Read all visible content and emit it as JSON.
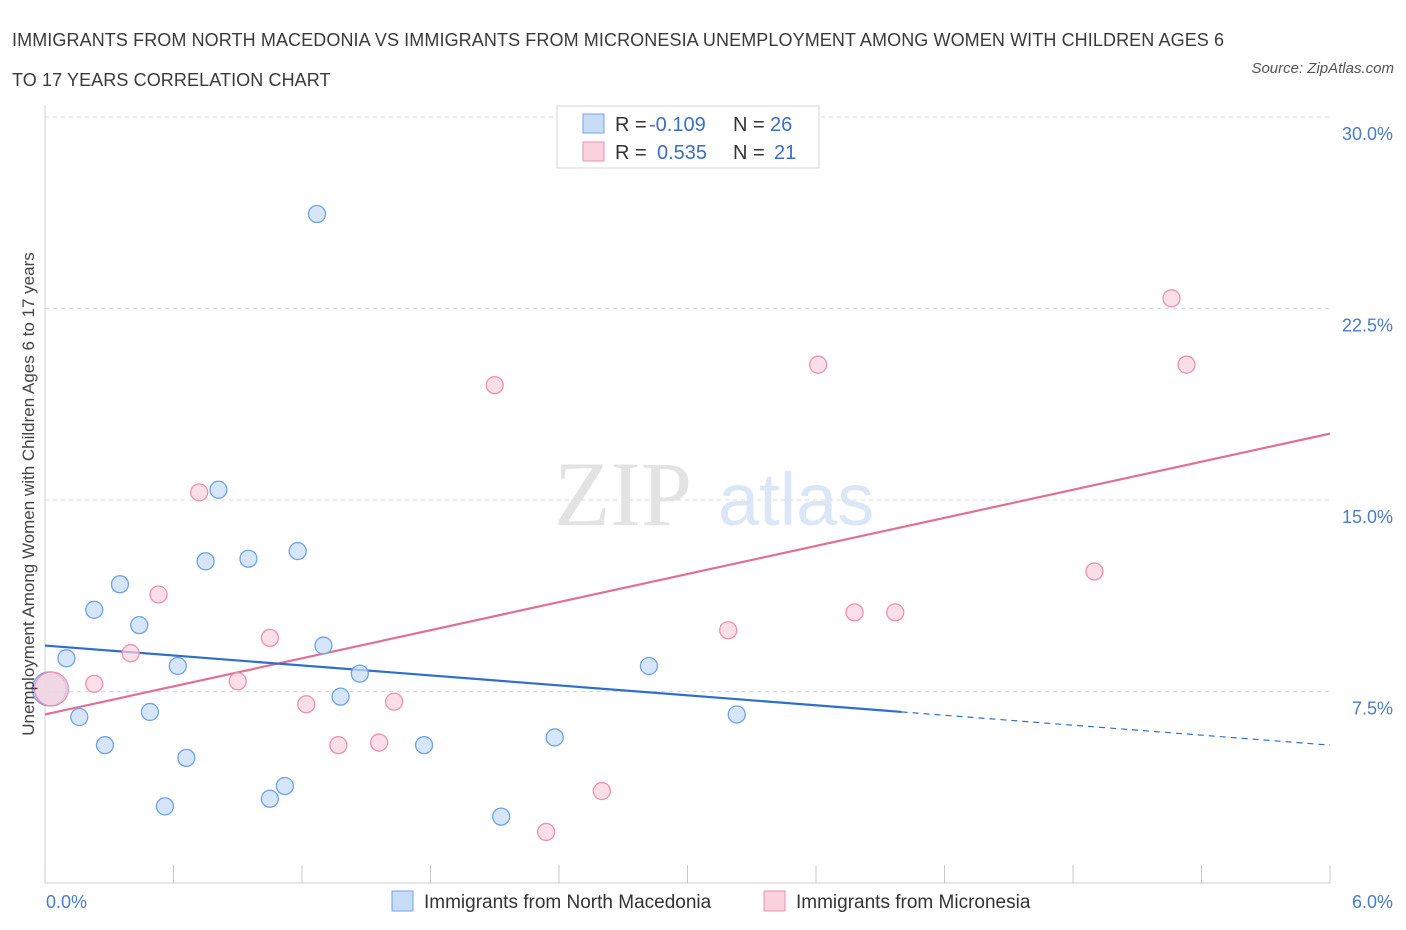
{
  "title": "IMMIGRANTS FROM NORTH MACEDONIA VS IMMIGRANTS FROM MICRONESIA UNEMPLOYMENT AMONG WOMEN WITH CHILDREN AGES 6 TO 17 YEARS CORRELATION CHART",
  "source": "Source: ZipAtlas.com",
  "watermark": {
    "zip": "ZIP",
    "atlas": "atlas"
  },
  "legend": {
    "rows": [
      {
        "r_label": "R =",
        "r_value": "-0.109",
        "n_label": "N =",
        "n_value": "26"
      },
      {
        "r_label": "R =",
        "r_value": "0.535",
        "n_label": "N =",
        "n_value": "21"
      }
    ]
  },
  "colors": {
    "series1": "#6fa3e8",
    "series1_fill": "#c9dcf6",
    "series1_line": "#2f6fcc",
    "series2": "#ee8fb0",
    "series2_fill": "#f9d2de",
    "series2_line": "#e07098",
    "grid": "#d8d8d8",
    "tick_label": "#4a7cc8"
  },
  "chart_data": {
    "type": "scatter",
    "title": "IMMIGRANTS FROM NORTH MACEDONIA VS IMMIGRANTS FROM MICRONESIA UNEMPLOYMENT AMONG WOMEN WITH CHILDREN AGES 6 TO 17 YEARS CORRELATION CHART",
    "xlabel": "",
    "ylabel": "Unemployment Among Women with Children Ages 6 to 17 years",
    "xlim": [
      0,
      6
    ],
    "ylim": [
      0,
      30
    ],
    "x_tick_labels": [
      "0.0%",
      "6.0%"
    ],
    "y_ticks": [
      7.5,
      15,
      22.5,
      30
    ],
    "y_tick_labels": [
      "7.5%",
      "15.0%",
      "22.5%",
      "30.0%"
    ],
    "grid": true,
    "legend_placement": "bottom",
    "series": [
      {
        "name": "Immigrants from North Macedonia",
        "r": -0.109,
        "n": 26,
        "points": [
          [
            0.02,
            7.6
          ],
          [
            0.1,
            8.8
          ],
          [
            0.16,
            6.5
          ],
          [
            0.23,
            10.7
          ],
          [
            0.28,
            5.4
          ],
          [
            0.35,
            11.7
          ],
          [
            0.44,
            10.1
          ],
          [
            0.49,
            6.7
          ],
          [
            0.56,
            3.0
          ],
          [
            0.62,
            8.5
          ],
          [
            0.66,
            4.9
          ],
          [
            0.75,
            12.6
          ],
          [
            0.81,
            15.4
          ],
          [
            0.95,
            12.7
          ],
          [
            1.05,
            3.3
          ],
          [
            1.12,
            3.8
          ],
          [
            1.18,
            13.0
          ],
          [
            1.27,
            26.2
          ],
          [
            1.3,
            9.3
          ],
          [
            1.38,
            7.3
          ],
          [
            1.47,
            8.2
          ],
          [
            1.77,
            5.4
          ],
          [
            2.13,
            2.6
          ],
          [
            2.38,
            5.7
          ],
          [
            2.82,
            8.5
          ],
          [
            3.23,
            6.6
          ]
        ],
        "trend": {
          "x": [
            0,
            4.0
          ],
          "y": [
            9.3,
            6.7
          ]
        },
        "trend_dashed": {
          "x": [
            4.0,
            6.0
          ],
          "y": [
            6.7,
            5.4
          ]
        }
      },
      {
        "name": "Immigrants from Micronesia",
        "r": 0.535,
        "n": 21,
        "points": [
          [
            0.03,
            7.6
          ],
          [
            0.23,
            7.8
          ],
          [
            0.4,
            9.0
          ],
          [
            0.53,
            11.3
          ],
          [
            0.72,
            15.3
          ],
          [
            0.9,
            7.9
          ],
          [
            1.05,
            9.6
          ],
          [
            1.22,
            7.0
          ],
          [
            1.37,
            5.4
          ],
          [
            1.56,
            5.5
          ],
          [
            1.63,
            7.1
          ],
          [
            2.1,
            19.5
          ],
          [
            2.34,
            2.0
          ],
          [
            2.6,
            3.6
          ],
          [
            3.19,
            9.9
          ],
          [
            3.61,
            20.3
          ],
          [
            3.78,
            10.6
          ],
          [
            3.97,
            10.6
          ],
          [
            4.9,
            12.2
          ],
          [
            5.26,
            22.9
          ],
          [
            5.33,
            20.3
          ]
        ],
        "trend": {
          "x": [
            0,
            6.0
          ],
          "y": [
            6.6,
            17.6
          ]
        }
      }
    ]
  }
}
